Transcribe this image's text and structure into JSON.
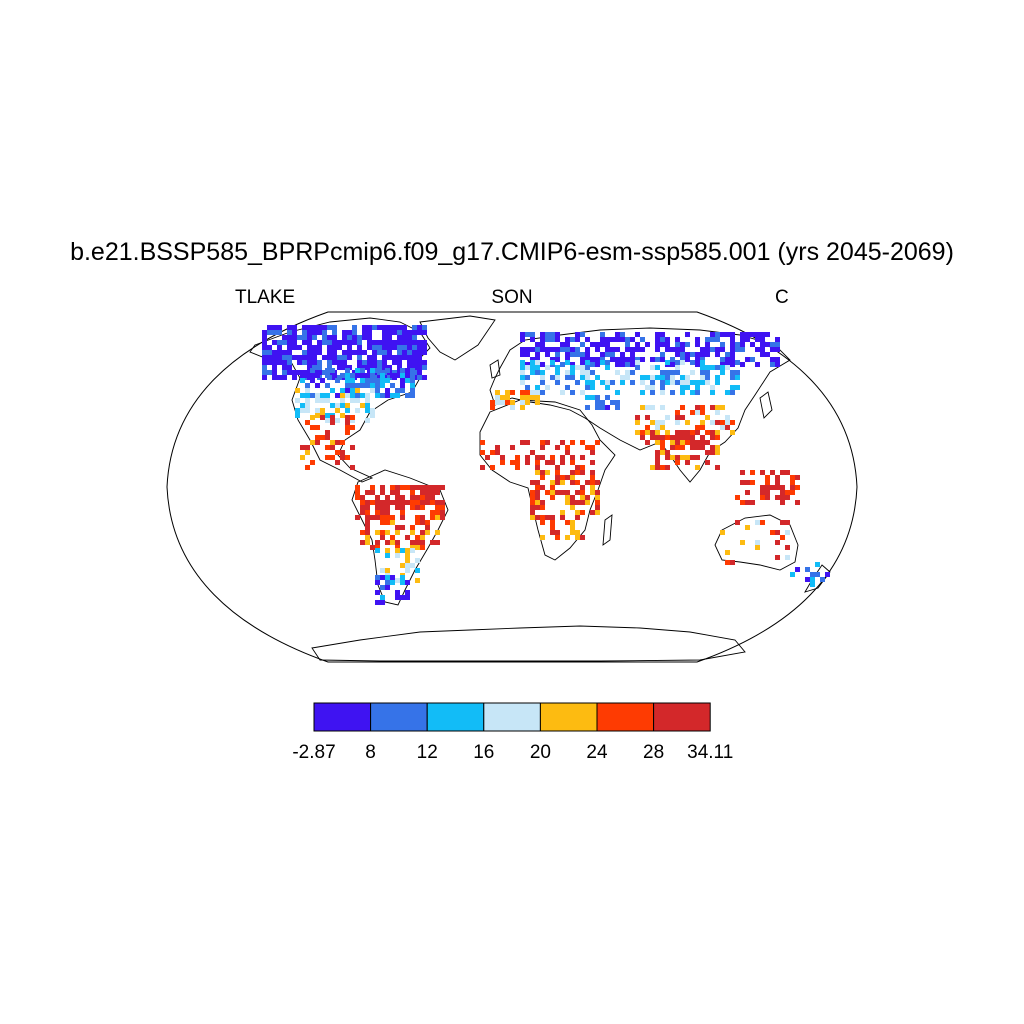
{
  "title": "b.e21.BSSP585_BPRPcmip6.f09_g17.CMIP6-esm-ssp585.001 (yrs 2045-2069)",
  "left_label": "TLAKE",
  "center_label": "SON",
  "right_label": "C",
  "map": {
    "projection": "robinson",
    "field": "TLAKE",
    "units": "C",
    "season": "SON"
  },
  "colorbar": {
    "labels": [
      "-2.87",
      "8",
      "12",
      "16",
      "20",
      "24",
      "28",
      "34.11"
    ],
    "boundaries": [
      -2.87,
      8,
      12,
      16,
      20,
      24,
      28,
      34.11
    ],
    "colors": [
      "#3f13f2",
      "#3673e8",
      "#12bcf7",
      "#c7e6f7",
      "#fdbb11",
      "#fe3b02",
      "#d3282a"
    ]
  }
}
